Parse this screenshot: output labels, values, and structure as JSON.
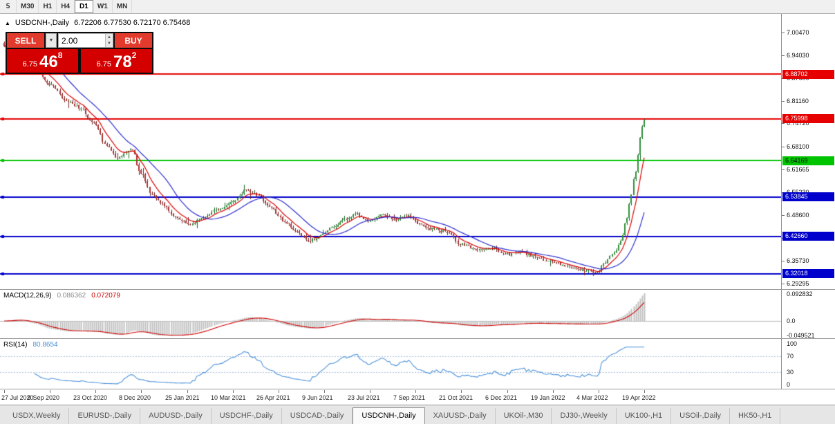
{
  "timeframe_bar": {
    "items": [
      {
        "label": "5",
        "active": false
      },
      {
        "label": "M30",
        "active": false
      },
      {
        "label": "H1",
        "active": false
      },
      {
        "label": "H4",
        "active": false
      },
      {
        "label": "D1",
        "active": true
      },
      {
        "label": "W1",
        "active": false
      },
      {
        "label": "MN",
        "active": false
      }
    ]
  },
  "chart_header": {
    "collapse_icon": "▲",
    "title": "USDCNH-,Daily",
    "ohlc": "6.72206 6.77530 6.72170 6.75468"
  },
  "trade_panel": {
    "sell_label": "SELL",
    "buy_label": "BUY",
    "volume": "2.00",
    "dropdown_icon": "▼",
    "spin_up_icon": "▲",
    "spin_down_icon": "▼",
    "sell_price": {
      "base": "6.75",
      "big": "46",
      "sup": "8"
    },
    "buy_price": {
      "base": "6.75",
      "big": "78",
      "sup": "2"
    }
  },
  "indicators": {
    "macd": {
      "label": "MACD(12,26,9)",
      "value": "0.086362",
      "signal": "0.072079"
    },
    "rsi": {
      "label": "RSI(14)",
      "value": "80.8654"
    }
  },
  "bottom_tabs": {
    "items": [
      {
        "label": "USDX,Weekly",
        "active": false
      },
      {
        "label": "EURUSD-,Daily",
        "active": false
      },
      {
        "label": "AUDUSD-,Daily",
        "active": false
      },
      {
        "label": "USDCHF-,Daily",
        "active": false
      },
      {
        "label": "USDCAD-,Daily",
        "active": false
      },
      {
        "label": "USDCNH-,Daily",
        "active": true
      },
      {
        "label": "XAUUSD-,Daily",
        "active": false
      },
      {
        "label": "UKOil-,M30",
        "active": false
      },
      {
        "label": "DJ30-,Weekly",
        "active": false
      },
      {
        "label": "UK100-,H1",
        "active": false
      },
      {
        "label": "USOil-,Daily",
        "active": false
      },
      {
        "label": "HK50-,H1",
        "active": false
      }
    ]
  },
  "chart_data": {
    "type": "candlestick",
    "symbol": "USDCNH-",
    "timeframe": "Daily",
    "title": "USDCNH-,Daily",
    "open": 6.72206,
    "high": 6.7753,
    "low": 6.7217,
    "close": 6.75468,
    "price_axis": {
      "min": 6.277,
      "max": 7.058,
      "ticks": [
        "7.00470",
        "6.94030",
        "6.87600",
        "6.81160",
        "6.74720",
        "6.68100",
        "6.61665",
        "6.55230",
        "6.48600",
        "6.42170",
        "6.35730",
        "6.29295"
      ]
    },
    "levels": [
      {
        "price": 6.88702,
        "label": "6.88702",
        "color": "#e60000",
        "text": "#ffffff"
      },
      {
        "price": 6.75998,
        "label": "6.75998",
        "color": "#e60000",
        "text": "#ffffff"
      },
      {
        "price": 6.64169,
        "label": "6.64169",
        "color": "#00c400",
        "text": "#000000"
      },
      {
        "price": 6.53845,
        "label": "6.53845",
        "color": "#0000cc",
        "text": "#ffffff"
      },
      {
        "price": 6.4266,
        "label": "6.42660",
        "color": "#0000cc",
        "text": "#ffffff"
      },
      {
        "price": 6.32018,
        "label": "6.32018",
        "color": "#0000cc",
        "text": "#ffffff"
      }
    ],
    "x_labels": [
      "27 Jul 2020",
      "9 Sep 2020",
      "23 Oct 2020",
      "8 Dec 2020",
      "25 Jan 2021",
      "10 Mar 2021",
      "26 Apr 2021",
      "9 Jun 2021",
      "23 Jul 2021",
      "7 Sep 2021",
      "21 Oct 2021",
      "6 Dec 2021",
      "19 Jan 2022",
      "4 Mar 2022",
      "19 Apr 2022"
    ],
    "price_series": {
      "note": "approximate close anchors read off the chart; [x-fraction 0-1, price]",
      "anchors": [
        [
          0.0,
          6.97
        ],
        [
          0.015,
          6.987
        ],
        [
          0.042,
          6.935
        ],
        [
          0.071,
          6.858
        ],
        [
          0.096,
          6.815
        ],
        [
          0.118,
          6.792
        ],
        [
          0.139,
          6.748
        ],
        [
          0.161,
          6.682
        ],
        [
          0.177,
          6.652
        ],
        [
          0.199,
          6.672
        ],
        [
          0.214,
          6.607
        ],
        [
          0.229,
          6.548
        ],
        [
          0.247,
          6.518
        ],
        [
          0.269,
          6.478
        ],
        [
          0.29,
          6.462
        ],
        [
          0.312,
          6.478
        ],
        [
          0.334,
          6.505
        ],
        [
          0.356,
          6.522
        ],
        [
          0.377,
          6.556
        ],
        [
          0.393,
          6.548
        ],
        [
          0.415,
          6.512
        ],
        [
          0.436,
          6.472
        ],
        [
          0.458,
          6.44
        ],
        [
          0.477,
          6.412
        ],
        [
          0.49,
          6.424
        ],
        [
          0.512,
          6.452
        ],
        [
          0.533,
          6.478
        ],
        [
          0.55,
          6.492
        ],
        [
          0.57,
          6.468
        ],
        [
          0.59,
          6.488
        ],
        [
          0.609,
          6.476
        ],
        [
          0.631,
          6.484
        ],
        [
          0.647,
          6.462
        ],
        [
          0.668,
          6.448
        ],
        [
          0.69,
          6.441
        ],
        [
          0.713,
          6.404
        ],
        [
          0.739,
          6.39
        ],
        [
          0.76,
          6.393
        ],
        [
          0.784,
          6.376
        ],
        [
          0.809,
          6.381
        ],
        [
          0.83,
          6.368
        ],
        [
          0.855,
          6.356
        ],
        [
          0.879,
          6.345
        ],
        [
          0.906,
          6.331
        ],
        [
          0.926,
          6.321
        ],
        [
          0.938,
          6.35
        ],
        [
          0.952,
          6.376
        ],
        [
          0.963,
          6.412
        ],
        [
          0.972,
          6.47
        ],
        [
          0.979,
          6.54
        ],
        [
          0.986,
          6.608
        ],
        [
          0.991,
          6.665
        ],
        [
          0.995,
          6.738
        ],
        [
          1.0,
          6.755
        ]
      ]
    },
    "moving_averages": [
      {
        "type": "EMA",
        "period": 8,
        "color": "#dd0000"
      },
      {
        "type": "SMA",
        "period": 20,
        "color": "#2b2bd0"
      }
    ],
    "macd": {
      "params": [
        12,
        26,
        9
      ],
      "value": 0.086362,
      "signal": 0.072079,
      "range": [
        -0.0595,
        0.1071
      ],
      "ticks": [
        {
          "value": 0.092832,
          "label": "0.092832"
        },
        {
          "value": 0,
          "label": "0.0"
        },
        {
          "value": -0.049521,
          "label": "-0.049521"
        }
      ],
      "histogram_color": "#c0c0c0",
      "signal_color": "#d00000"
    },
    "rsi": {
      "period": 14,
      "value": 80.8654,
      "range": [
        -10,
        112
      ],
      "ticks": [
        {
          "value": 100,
          "label": "100"
        },
        {
          "value": 70,
          "label": "70"
        },
        {
          "value": 30,
          "label": "30"
        },
        {
          "value": 0,
          "label": "0"
        }
      ],
      "line_color": "#4a90d9",
      "level_lines": [
        70,
        30
      ]
    },
    "candle_colors": {
      "up": "#2f8f3a",
      "down": "#a83232",
      "up_wick": "#1c6125",
      "down_wick": "#702222"
    }
  }
}
